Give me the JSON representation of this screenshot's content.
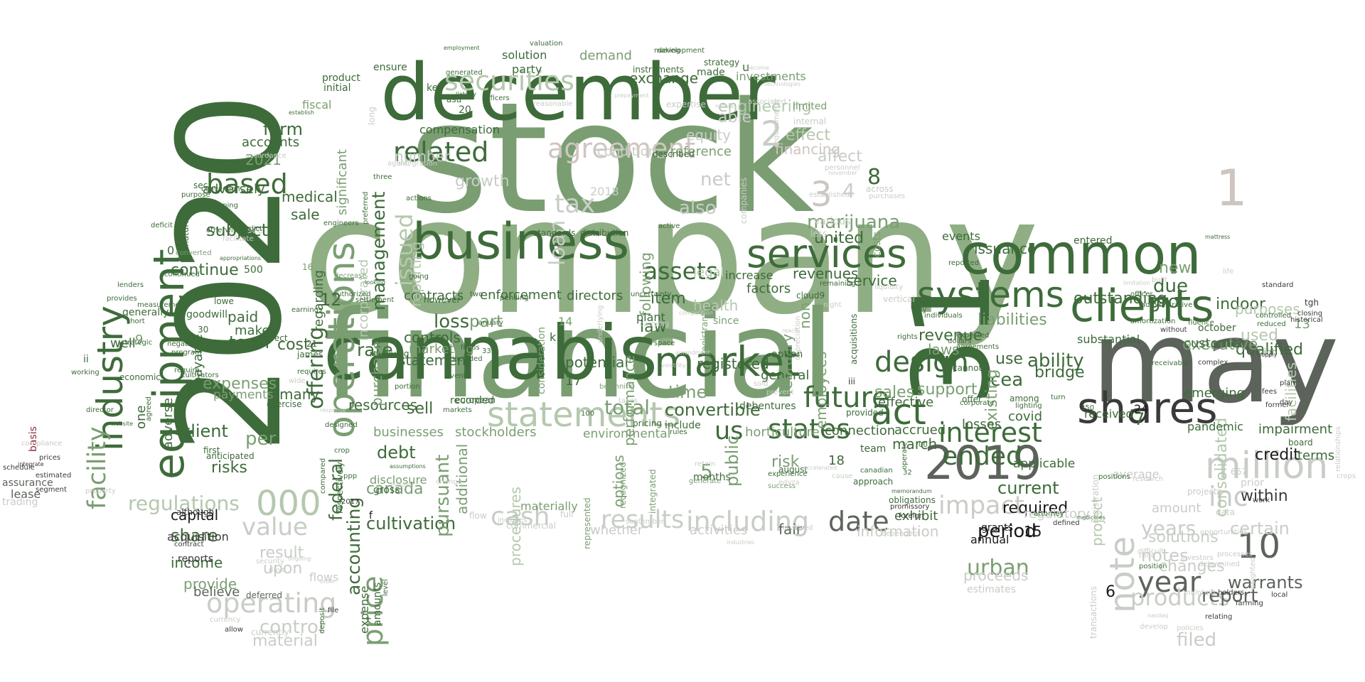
{
  "palette": {
    "dark_green": "#3e6b3a",
    "mid_green": "#7a9e72",
    "sage": "#8fae84",
    "light_sage": "#b5c8ae",
    "gray": "#5c635b",
    "dark_gray": "#3a3a3a",
    "light_gray": "#c8cdc6",
    "taupe": "#cfc5c0",
    "maroon": "#8a2a3a",
    "black": "#1a1a1a"
  },
  "words": {
    "stock": "stock",
    "company": "company",
    "financial": "financial",
    "n2020": "2020",
    "december": "december",
    "may": "may",
    "n31": "31",
    "cannabis": "cannabis",
    "common": "common",
    "business": "business",
    "equipment": "equipment",
    "industry": "industry",
    "clients": "clients",
    "shares": "shares",
    "n2019": "2019",
    "million": "million",
    "market": "market",
    "services": "services",
    "systems": "systems",
    "operations": "operations",
    "statements": "statements",
    "securities": "securities",
    "agreement": "agreement",
    "related": "related",
    "results": "results",
    "including": "including",
    "cash": "cash",
    "interest": "interest",
    "year": "year",
    "products": "products",
    "note": "note",
    "n10": "10",
    "design": "design",
    "act": "act",
    "future": "future",
    "states": "states",
    "assets": "assets",
    "operating": "operating",
    "value": "value",
    "n000": "000",
    "price": "price",
    "facility": "facility",
    "based": "based",
    "date": "date",
    "impact": "impact",
    "ended": "ended",
    "inc": "inc",
    "n1": "1",
    "n2": "2",
    "n3": "3",
    "n8": "8",
    "n4": "4",
    "issued": "issued",
    "management": "management",
    "offering": "offering",
    "marijuana": "marijuana",
    "engineering": "engineering",
    "effect": "effect",
    "financing": "financing",
    "reference": "reference",
    "exchange": "exchange",
    "convertible": "convertible",
    "us": "us",
    "total": "total",
    "time": "time",
    "item": "item",
    "loss": "loss",
    "part": "part",
    "cultivation": "cultivation",
    "canada": "canada",
    "debt": "debt",
    "federal": "federal",
    "accounting": "accounting",
    "regulations": "regulations",
    "expenses": "expenses",
    "payments": "payments",
    "client": "client",
    "term": "term",
    "subject": "subject",
    "continue": "continue",
    "form": "form",
    "accounts": "accounts",
    "n2021": "2021",
    "adversely": "adversely",
    "capital": "capital",
    "share": "share",
    "income": "income",
    "provide": "provide",
    "believe": "believe",
    "result": "result",
    "upon": "upon",
    "control": "control",
    "material": "material",
    "urban": "urban",
    "period": "period",
    "years": "years",
    "notes": "notes",
    "warrants": "warrants",
    "report": "report",
    "filed": "filed",
    "solutions": "solutions",
    "changes": "changes",
    "certain": "certain",
    "amount": "amount",
    "credit": "credit",
    "within": "within",
    "consolidated": "consolidated",
    "facilities": "facilities",
    "indoor": "indoor",
    "purposes": "purposes",
    "used": "used",
    "qualified": "qualified",
    "executive": "executive",
    "ability": "ability",
    "bridge": "bridge",
    "cea": "cea",
    "current": "current",
    "required": "required",
    "issuance": "issuance",
    "revenue": "revenue",
    "support": "support",
    "laws": "laws",
    "sales": "sales",
    "effective": "effective",
    "existing": "existing",
    "liabilities": "liabilities",
    "outstanding": "outstanding",
    "new": "new",
    "due": "due",
    "gro": "gro",
    "revenues": "revenues",
    "service": "service",
    "united": "united",
    "employees": "employees",
    "registered": "registered",
    "public": "public",
    "law": "law",
    "health": "health",
    "potential": "potential",
    "statement": "statement",
    "stockholders": "stockholders",
    "businesses": "businesses",
    "environmental": "environmental",
    "horticulture": "horticulture",
    "connection": "connection",
    "risk": "risk",
    "general": "general",
    "fair": "fair",
    "activities": "activities",
    "information": "information",
    "whether": "whether",
    "procedures": "procedures",
    "pursuant": "pursuant",
    "additional": "additional",
    "sell": "sell",
    "resources": "resources",
    "rate": "rate",
    "purchase": "purchase",
    "controls": "controls",
    "marketing": "marketing",
    "contracts": "contracts",
    "enforcement": "enforcement",
    "directors": "directors",
    "performance": "performance",
    "options": "options",
    "following": "following",
    "february": "february",
    "march": "march",
    "accrued": "accrued",
    "emerging": "emerging",
    "impairment": "impairment",
    "terms": "terms",
    "customer": "customer",
    "project": "project",
    "applicable": "applicable",
    "regulatory": "regulatory",
    "grants": "grants",
    "annual": "annual",
    "proceeds": "proceeds",
    "demand": "demand",
    "solution": "solution",
    "reporting": "reporting",
    "incorporated": "incorporated",
    "significant": "significant",
    "regarding": "regarding",
    "number": "number",
    "compensation": "compensation",
    "condition": "condition",
    "equity": "equity",
    "net": "net",
    "tax": "tax",
    "loan": "loan",
    "growth": "growth",
    "also": "also",
    "affect": "affect",
    "able": "able",
    "n12": "12",
    "n5": "5",
    "n6": "6",
    "n7": "7",
    "n9": "9",
    "n13": "13",
    "n14": "14",
    "n15": "15",
    "n17": "17",
    "n18": "18",
    "n24": "24",
    "sale": "sale",
    "medical": "medical",
    "payable": "payable",
    "risks": "risks",
    "per": "per",
    "paid": "paid",
    "make": "make",
    "cost": "cost",
    "many": "many",
    "adverse": "adverse",
    "one": "one",
    "well": "well",
    "lease": "lease",
    "assurance": "assurance",
    "trading": "trading",
    "basis": "basis",
    "acquisition": "acquisition",
    "reports": "reports",
    "flows": "flows",
    "investments": "investments",
    "limited": "limited",
    "fiscal": "fiscal",
    "party": "party",
    "product": "product",
    "initial": "initial",
    "instruments": "instruments",
    "ensure": "ensure",
    "key": "key",
    "strategy": "strategy",
    "made": "made",
    "average": "average",
    "disclosure": "disclosure",
    "materially": "materially",
    "pandemic": "pandemic",
    "covid": "covid",
    "received": "received",
    "exhibit": "exhibit",
    "losses": "losses",
    "non": "non",
    "since": "since",
    "increase": "increase",
    "factors": "factors",
    "legal": "legal",
    "option": "option",
    "events": "events",
    "entered": "entered",
    "substantial": "substantial",
    "use": "use",
    "team": "team",
    "months": "months",
    "include": "include",
    "debentures": "debentures",
    "recorded": "recorded",
    "gross": "gross",
    "expense": "expense",
    "amounts": "amounts",
    "first": "first",
    "economic": "economic",
    "goodwill": "goodwill",
    "generally": "generally",
    "lowe": "lowe",
    "james": "james",
    "respect": "respect",
    "n0": "0",
    "n500": "500",
    "n16": "16",
    "n21": "21",
    "n30": "30",
    "n20": "20",
    "n333": "333",
    "n00": "00",
    "k": "k",
    "f": "f",
    "u": "u",
    "ii": "ii",
    "tgh": "tgh",
    "development": "development",
    "valuation": "valuation",
    "making": "making",
    "employment": "employment",
    "officers": "officers",
    "asu": "asu",
    "three": "three",
    "sec": "sec",
    "conversion": "conversion",
    "maturity": "maturity",
    "otherwise": "otherwise",
    "see": "see",
    "converted": "converted",
    "continued": "continued",
    "lenders": "lenders",
    "provides": "provides",
    "strategic": "strategic",
    "working": "working",
    "director": "director",
    "segment": "segment",
    "estimated": "estimated",
    "schedule": "schedule",
    "prices": "prices",
    "compliance": "compliance",
    "although": "although",
    "contract": "contract",
    "deferred": "deferred",
    "security": "security",
    "currency": "currency",
    "allow": "allow",
    "currently": "currently",
    "deposit": "deposit",
    "file": "file",
    "level": "level",
    "ppp": "ppp",
    "respectively": "respectively",
    "designed": "designed",
    "european": "european",
    "event": "event",
    "however": "however",
    "two": "two",
    "focus": "focus",
    "january": "january",
    "pending": "pending",
    "included": "included",
    "consideration": "consideration",
    "plant": "plant",
    "described": "described",
    "uncertainty": "uncertainty",
    "beginning": "beginning",
    "recognized": "recognized",
    "integrated": "integrated",
    "represented": "represented",
    "full": "full",
    "flow": "flow",
    "commercial": "commercial",
    "includes": "includes",
    "september": "september",
    "pricing": "pricing",
    "rules": "rules",
    "retain": "retain",
    "generate": "generate",
    "august": "august",
    "success": "success",
    "experience": "experience",
    "involved": "involved",
    "provided": "provided",
    "canadian": "canadian",
    "approach": "approach",
    "obligations": "obligations",
    "promissory": "promissory",
    "foreign": "foreign",
    "dependent": "dependent",
    "attorney": "attorney",
    "defined": "defined",
    "transactions": "transactions",
    "third": "third",
    "position": "position",
    "investors": "investors",
    "projects": "projects",
    "opportunities": "opportunities",
    "prior": "prior",
    "october": "october",
    "high": "high",
    "controlled": "controlled",
    "reduced": "reduced",
    "complex": "complex",
    "board": "board",
    "fees": "fees",
    "work": "work",
    "holders": "holders",
    "relationships": "relationships",
    "maintain": "maintain",
    "agreements": "agreements",
    "dollars": "dollars",
    "expected": "expected",
    "individuals": "individuals",
    "fully": "fully",
    "rights": "rights",
    "cannot": "cannot",
    "offer": "offer",
    "corporate": "corporate",
    "among": "among",
    "turn": "turn",
    "lighting": "lighting",
    "vertical": "vertical",
    "costs": "costs",
    "reported": "reported",
    "liquidity": "liquidity",
    "acquisitions": "acquisitions",
    "various": "various",
    "less": "less",
    "across": "across",
    "purchases": "purchases",
    "personnel": "personnel",
    "established": "established",
    "november": "november",
    "internal": "internal",
    "requirements": "requirements",
    "amortization": "amortization",
    "administrative": "administrative",
    "without": "without",
    "officer": "officer",
    "built": "built",
    "standards": "standards",
    "distribution": "distribution",
    "companies": "companies",
    "registrant": "registrant",
    "cloud9": "cloud9",
    "sold": "sold",
    "prevent": "prevent",
    "edyza": "edyza",
    "cause": "cause",
    "accelerated": "accelerated",
    "taxes": "taxes",
    "carrying": "carrying",
    "underlying": "underlying",
    "amendment": "amendment",
    "volatility": "volatility",
    "competition": "competition",
    "industries": "industries",
    "n2018": "2018",
    "n2017": "2017",
    "n350": "350",
    "n100": "100",
    "n667": "667",
    "iii": "iii",
    "memorandum": "memorandum",
    "operate": "operate",
    "n32": "32",
    "research": "research",
    "change": "change",
    "markets": "markets",
    "portion": "portion",
    "building": "building",
    "assumptions": "assumptions",
    "response": "response",
    "cultivators": "cultivators",
    "program": "program",
    "negatively": "negatively",
    "require": "require",
    "exercise": "exercise",
    "requires": "requires",
    "wide": "wide",
    "earnings": "earnings",
    "measurement": "measurement",
    "revolving": "revolving",
    "decrease": "decrease",
    "settlement": "settlement",
    "authorized": "authorized",
    "short": "short",
    "integrate": "integrate",
    "anticipated": "anticipated",
    "compared": "compared",
    "order": "order",
    "ongoing": "ongoing",
    "days": "days",
    "property": "property",
    "crop": "crop",
    "website": "website",
    "agreed": "agreed",
    "mattress": "mattress",
    "limitation": "limitation",
    "data": "data",
    "plan": "plan",
    "day": "day",
    "former": "former",
    "crops": "crops",
    "historical": "historical",
    "closing": "closing",
    "standard": "standard",
    "life": "life",
    "supply": "supply",
    "local": "local",
    "weighted": "weighted",
    "processes": "processes",
    "farming": "farming",
    "relating": "relating",
    "policies": "policies",
    "develop": "develop",
    "nasdaq": "nasdaq",
    "difficult": "difficult",
    "determined": "determined",
    "estimates": "estimates",
    "medicines": "medicines",
    "positions": "positions",
    "registration": "registration",
    "receivable": "receivable",
    "fluence": "fluence",
    "reasonable": "reasonable",
    "prepayment": "prepayment",
    "become": "become",
    "technologies": "technologies",
    "nature": "nature",
    "associated": "associated",
    "expertise": "expertise",
    "liability": "liability",
    "generated": "generated",
    "establish": "establish",
    "predict": "predict",
    "purpose": "purpose",
    "commissioning": "commissioning",
    "deficit": "deficit",
    "appropriations": "appropriations",
    "facilitate": "facilitate",
    "engineers": "engineers",
    "preferred": "preferred",
    "integration": "integration",
    "agent": "agent",
    "actions": "actions",
    "going": "going",
    "looking": "looking",
    "night": "night",
    "depreciation": "depreciation",
    "reach": "reach",
    "remaining": "remaining",
    "active": "active",
    "space": "space",
    "long": "long",
    "accordance": "accordance"
  }
}
